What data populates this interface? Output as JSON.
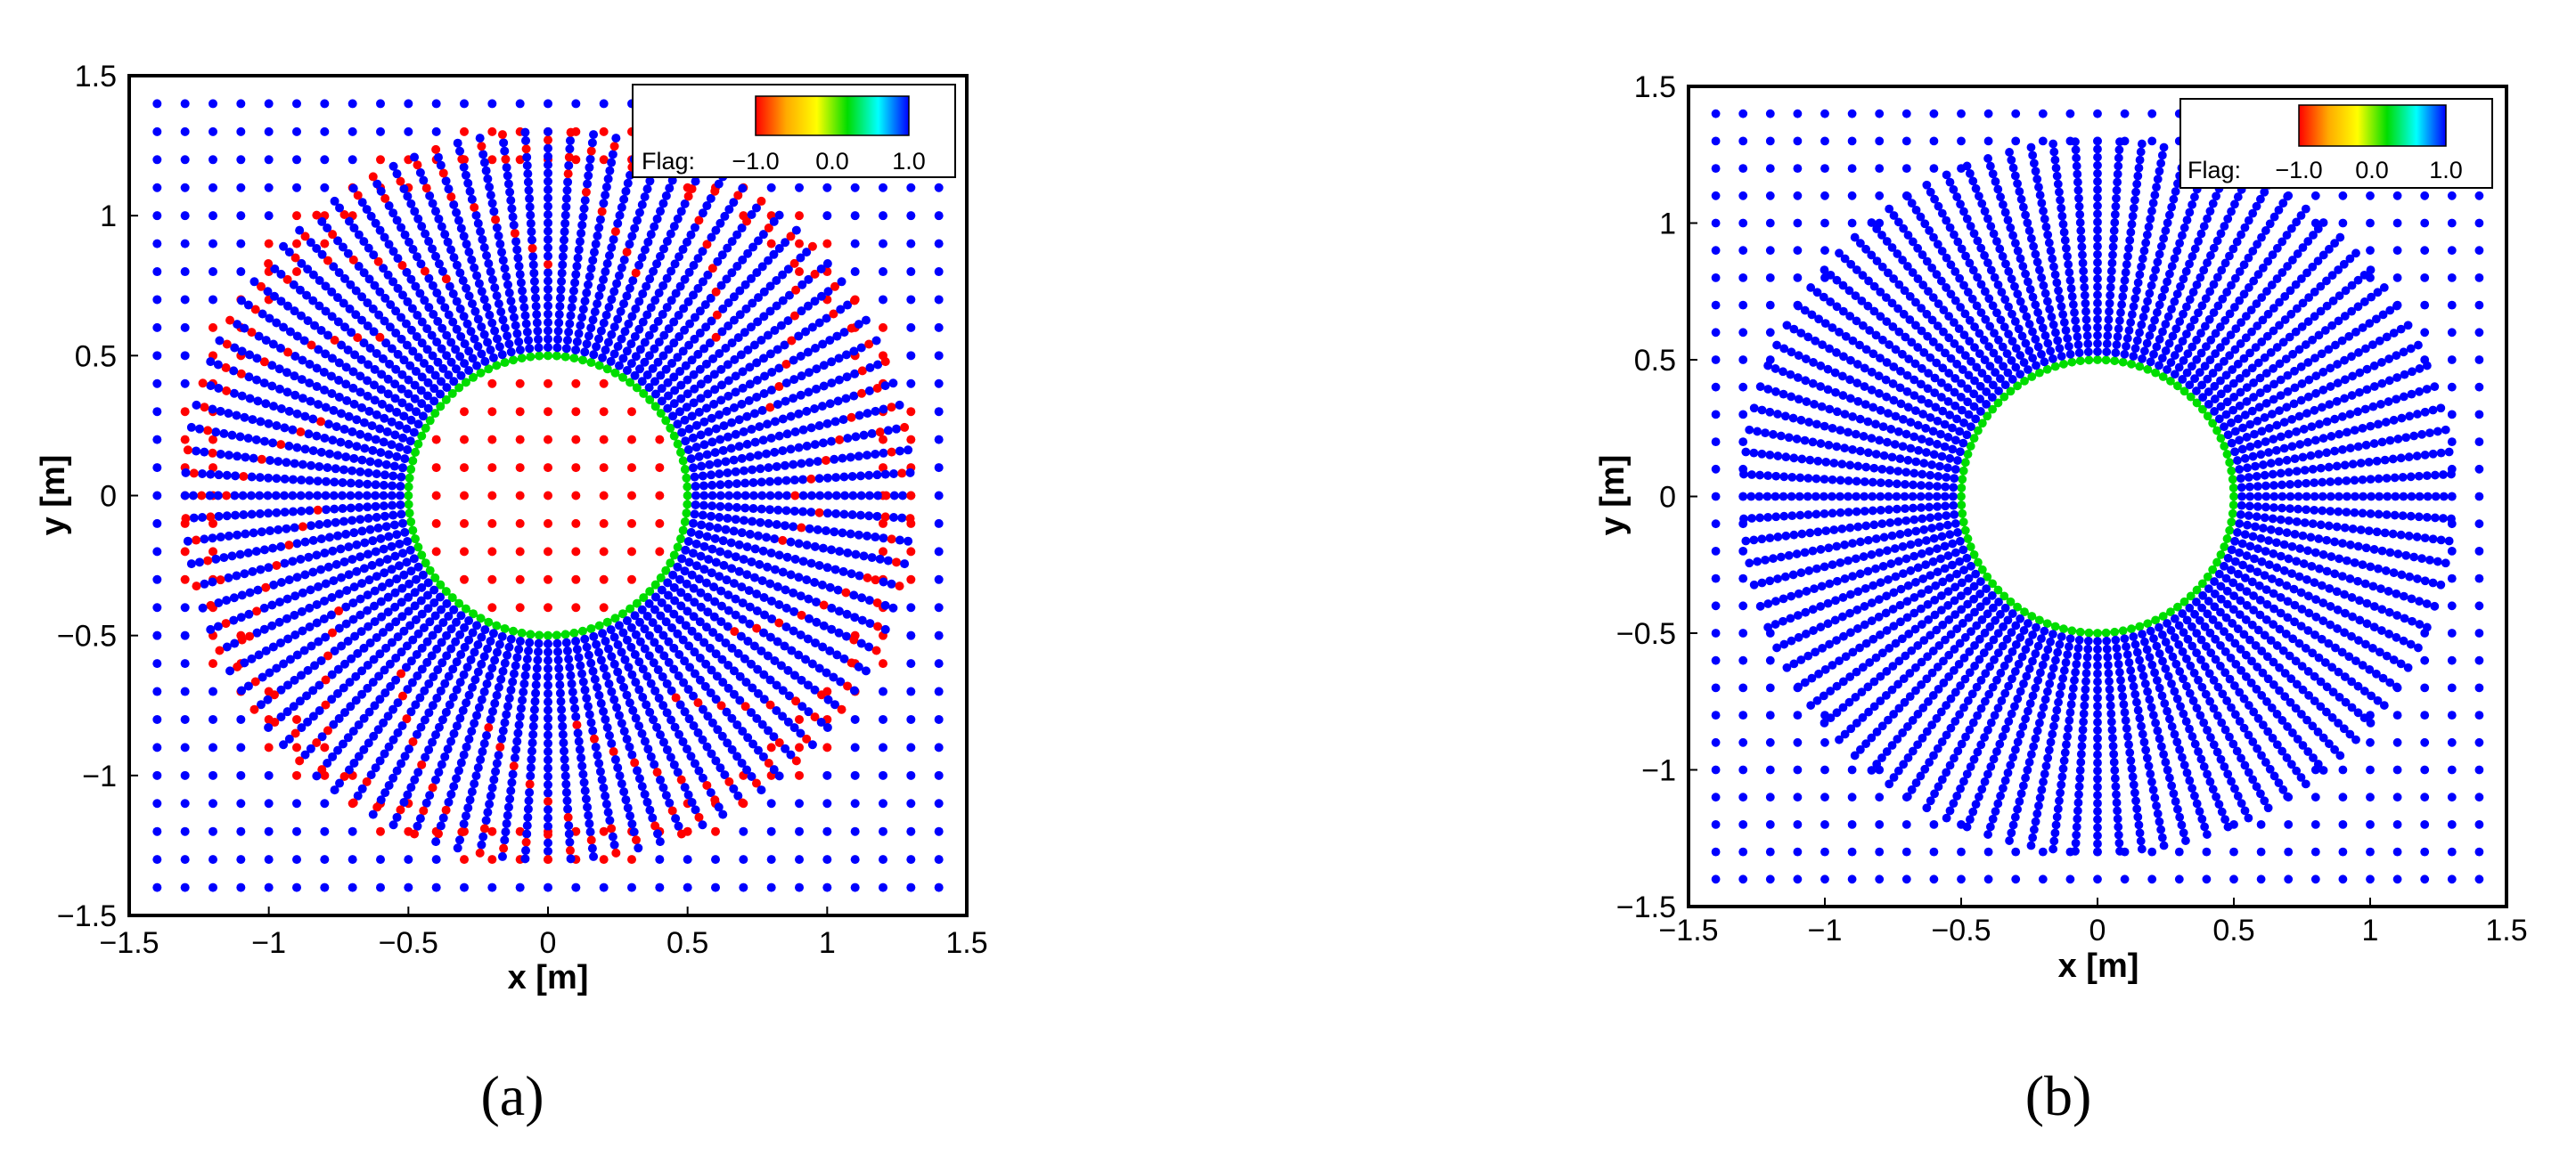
{
  "chart_data": [
    {
      "type": "scatter",
      "panel_label": "(a)",
      "xlabel": "x [m]",
      "ylabel": "y [m]",
      "xlim": [
        -1.5,
        1.5
      ],
      "ylim": [
        -1.5,
        1.5
      ],
      "x_ticks": [
        "−1.5",
        "−1",
        "−0.5",
        "0",
        "0.5",
        "1",
        "1.5"
      ],
      "y_ticks": [
        "1.5",
        "1",
        "0.5",
        "0",
        "−0.5",
        "−1",
        "−1.5"
      ],
      "grid": false,
      "legend": {
        "placement": "top-right",
        "label": "Flag:",
        "ticks": [
          "−1.0",
          "0.0",
          "1.0"
        ],
        "colormap": [
          "#ff0000",
          "#ffaa00",
          "#ffff00",
          "#00dd00",
          "#00ffff",
          "#0000ff"
        ]
      },
      "background_grid": {
        "spacing": 0.1,
        "extent": [
          -1.4,
          1.4
        ]
      },
      "circle": {
        "radius": 0.5,
        "color": "#00dd00"
      },
      "body_fitted": {
        "r_min": 0.5,
        "r_max": 1.3,
        "rings": 28,
        "points_per_ring": 100
      },
      "colors": {
        "flag_pos": "#0000ff",
        "flag_neg": "#ff0000",
        "wall": "#00dd00"
      },
      "flag_rule": "a"
    },
    {
      "type": "scatter",
      "panel_label": "(b)",
      "xlabel": "x [m]",
      "ylabel": "y [m]",
      "xlim": [
        -1.5,
        1.5
      ],
      "ylim": [
        -1.5,
        1.5
      ],
      "x_ticks": [
        "−1.5",
        "−1",
        "−0.5",
        "0",
        "0.5",
        "1",
        "1.5"
      ],
      "y_ticks": [
        "1.5",
        "1",
        "0.5",
        "0",
        "−0.5",
        "−1",
        "−1.5"
      ],
      "grid": false,
      "legend": {
        "placement": "top-right",
        "label": "Flag:",
        "ticks": [
          "−1.0",
          "0.0",
          "1.0"
        ],
        "colormap": [
          "#ff0000",
          "#ffaa00",
          "#ffff00",
          "#00dd00",
          "#00ffff",
          "#0000ff"
        ]
      },
      "background_grid": {
        "spacing": 0.1,
        "extent": [
          -1.4,
          1.4
        ]
      },
      "circle": {
        "radius": 0.5,
        "color": "#00dd00"
      },
      "body_fitted": {
        "r_min": 0.5,
        "r_max": 1.3,
        "rings": 28,
        "points_per_ring": 100
      },
      "colors": {
        "flag_pos": "#0000ff",
        "flag_neg": "#ff0000",
        "wall": "#00dd00"
      },
      "flag_rule": "b"
    }
  ]
}
